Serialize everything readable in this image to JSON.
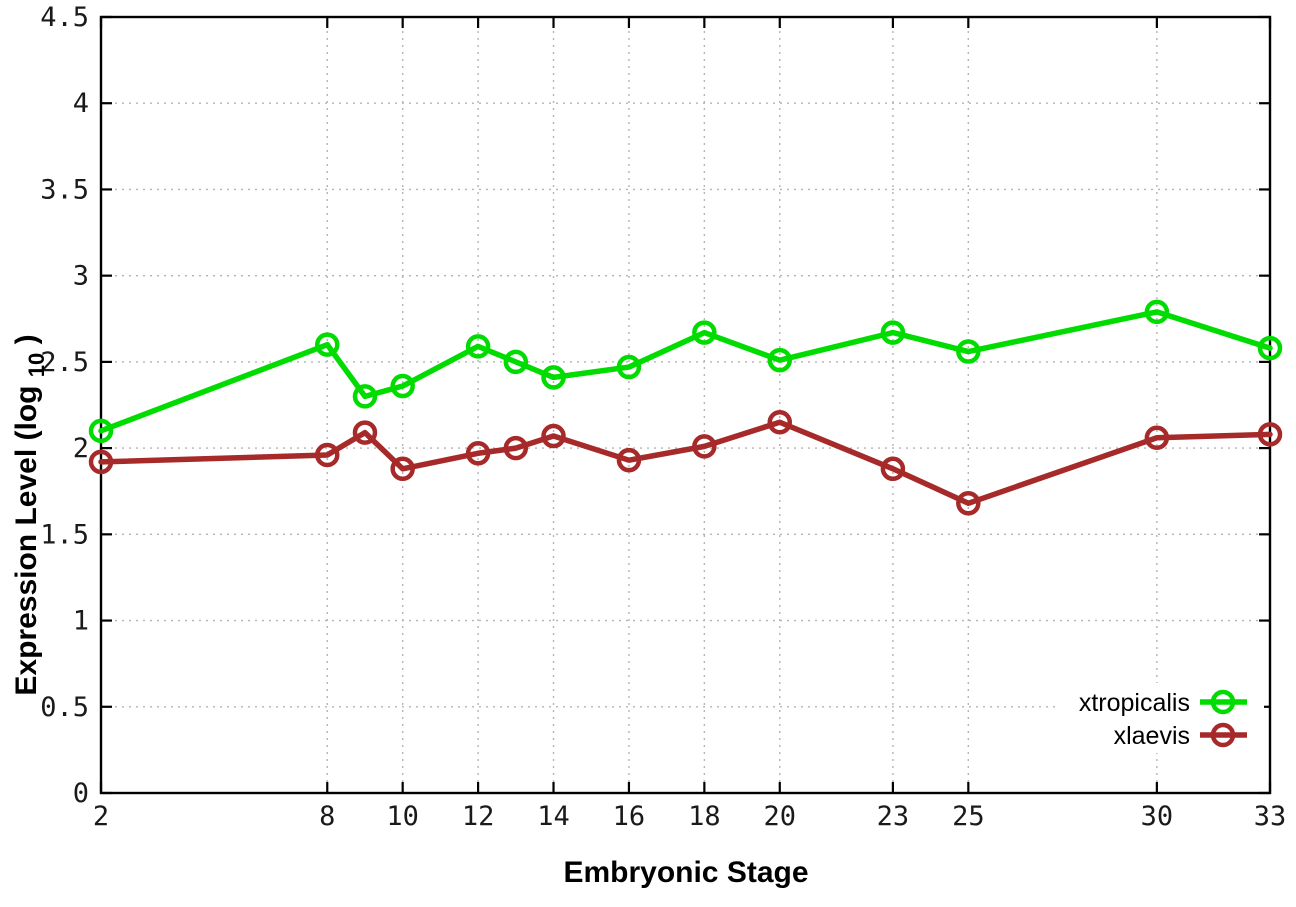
{
  "chart_data": {
    "type": "line",
    "title": "",
    "xlabel": "Embryonic Stage",
    "ylabel": "Expression Level (log10)",
    "ylabel_parts": [
      "Expression Level (log",
      "10",
      ")"
    ],
    "x": [
      2,
      8,
      9,
      10,
      12,
      13,
      14,
      16,
      18,
      20,
      23,
      25,
      30,
      33
    ],
    "series": [
      {
        "name": "xtropicalis",
        "color": "#00dc00",
        "values": [
          2.1,
          2.6,
          2.3,
          2.36,
          2.59,
          2.5,
          2.41,
          2.47,
          2.67,
          2.51,
          2.67,
          2.56,
          2.79,
          2.58
        ]
      },
      {
        "name": "xlaevis",
        "color": "#a62a2a",
        "values": [
          1.92,
          1.96,
          2.09,
          1.88,
          1.97,
          2.0,
          2.07,
          1.93,
          2.01,
          2.15,
          1.88,
          1.68,
          2.06,
          2.08
        ]
      }
    ],
    "xlim": [
      2,
      33
    ],
    "ylim": [
      0,
      4.5
    ],
    "x_ticks": [
      2,
      8,
      10,
      12,
      14,
      16,
      18,
      20,
      23,
      25,
      30,
      33
    ],
    "y_ticks": [
      0,
      0.5,
      1,
      1.5,
      2,
      2.5,
      3,
      3.5,
      4,
      4.5
    ],
    "grid": true,
    "legend_position": "bottom-right",
    "axis_color": "#000000",
    "grid_color": "#b4b4b4",
    "background_color": "#ffffff",
    "marker": "open-circle"
  }
}
